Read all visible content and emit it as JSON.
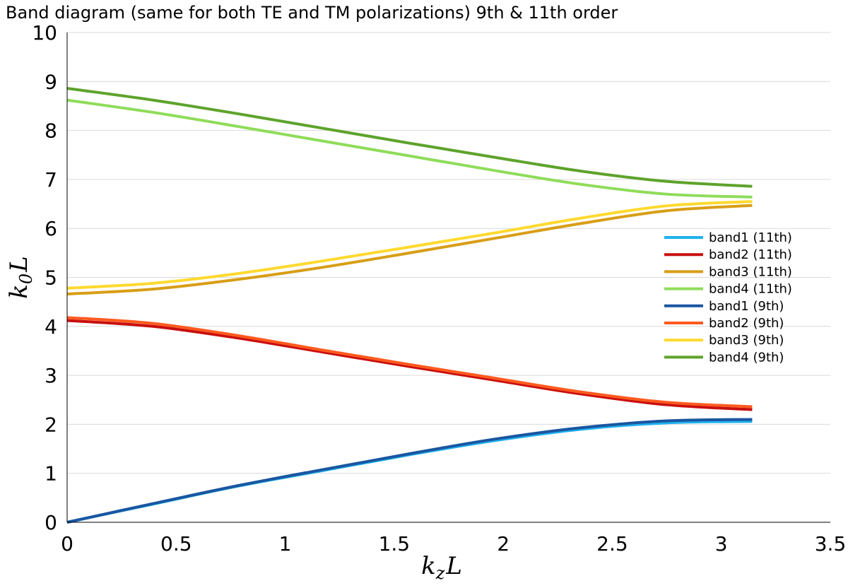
{
  "chart_data": {
    "type": "line",
    "title": "Band diagram (same for both TE and TM polarizations) 9th & 11th order",
    "xlabel": "k_z L",
    "ylabel": "k_0 L",
    "xlim": [
      0,
      3.5
    ],
    "ylim": [
      0,
      10
    ],
    "xticks": [
      "0",
      "0.5",
      "1",
      "1.5",
      "2",
      "2.5",
      "3",
      "3.5"
    ],
    "yticks": [
      "0",
      "1",
      "2",
      "3",
      "4",
      "5",
      "6",
      "7",
      "8",
      "9",
      "10"
    ],
    "grid": "horizontal",
    "legend_position": "right",
    "x": [
      0,
      0.3927,
      0.7854,
      1.1781,
      1.5708,
      1.9635,
      2.3562,
      2.7489,
      3.1416
    ],
    "series": [
      {
        "name": "band1 (11th)",
        "color": "#1fb1ef",
        "values": [
          0.0,
          0.37,
          0.74,
          1.06,
          1.38,
          1.67,
          1.9,
          2.03,
          2.06
        ]
      },
      {
        "name": "band2 (11th)",
        "color": "#c80f0f",
        "values": [
          4.12,
          4.0,
          3.76,
          3.47,
          3.18,
          2.9,
          2.62,
          2.4,
          2.3
        ]
      },
      {
        "name": "band3 (11th)",
        "color": "#d89e17",
        "values": [
          4.66,
          4.76,
          4.96,
          5.21,
          5.5,
          5.8,
          6.1,
          6.36,
          6.47
        ]
      },
      {
        "name": "band4 (11th)",
        "color": "#8fdc5a",
        "values": [
          8.62,
          8.37,
          8.08,
          7.78,
          7.48,
          7.18,
          6.9,
          6.7,
          6.64
        ]
      },
      {
        "name": "band1 (9th)",
        "color": "#1a56a0",
        "values": [
          0.0,
          0.38,
          0.75,
          1.08,
          1.4,
          1.7,
          1.93,
          2.07,
          2.1
        ]
      },
      {
        "name": "band2 (9th)",
        "color": "#ff5a1f",
        "values": [
          4.18,
          4.06,
          3.81,
          3.51,
          3.22,
          2.94,
          2.66,
          2.45,
          2.36
        ]
      },
      {
        "name": "band3 (9th)",
        "color": "#ffd92e",
        "values": [
          4.78,
          4.88,
          5.08,
          5.34,
          5.62,
          5.91,
          6.21,
          6.46,
          6.55
        ]
      },
      {
        "name": "band4 (9th)",
        "color": "#5ea32c",
        "values": [
          8.86,
          8.62,
          8.34,
          8.04,
          7.74,
          7.45,
          7.17,
          6.96,
          6.86
        ]
      }
    ]
  }
}
